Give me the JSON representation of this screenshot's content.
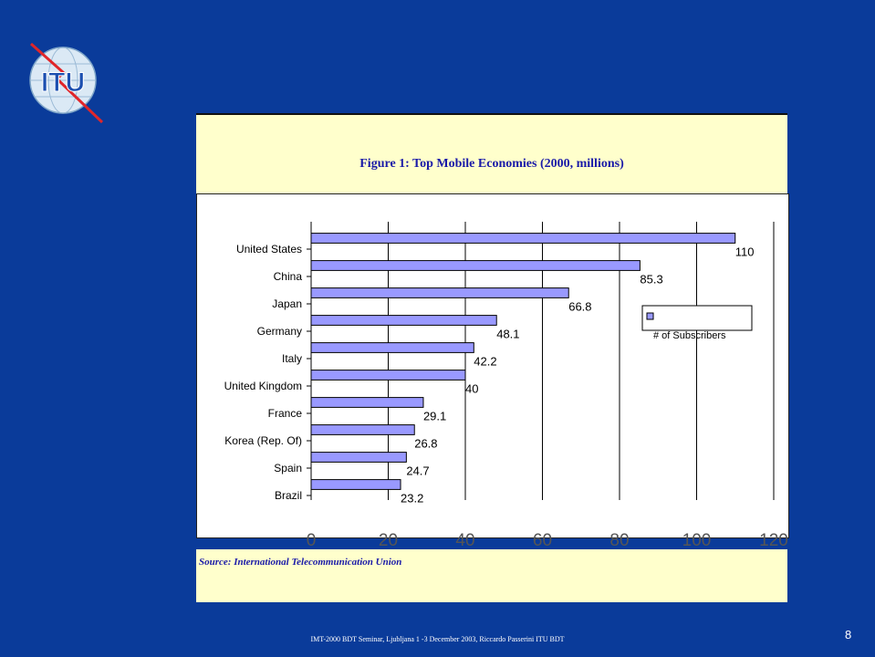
{
  "logo": {
    "text": "ITU"
  },
  "chart_data": {
    "type": "bar",
    "orientation": "horizontal",
    "title": "Figure  1:  Top Mobile Economies (2000, millions)",
    "categories": [
      "United States",
      "China",
      "Japan",
      "Germany",
      "Italy",
      "United Kingdom",
      "France",
      "Korea (Rep. Of)",
      "Spain",
      "Brazil"
    ],
    "series": [
      {
        "name": "# of Subscribers",
        "values": [
          110,
          85.3,
          66.8,
          48.1,
          42.2,
          40,
          29.1,
          26.8,
          24.7,
          23.2
        ]
      }
    ],
    "data_labels": [
      "110",
      "85.3",
      "66.8",
      "48.1",
      "42.2",
      "40",
      "29.1",
      "26.8",
      "24.7",
      "23.2"
    ],
    "x_ticks": [
      "0",
      "20",
      "40",
      "60",
      "80",
      "100",
      "120"
    ],
    "xlim": [
      0,
      120
    ],
    "grid": true,
    "bar_color": "#9999ff",
    "legend_position": "right"
  },
  "source": "Source: International Telecommunication Union",
  "footer": "IMT-2000 BDT Seminar, Ljubljana 1 -3 December 2003, Riccardo Passerini ITU BDT",
  "slide_number": "8",
  "colors": {
    "background": "#0a3b9a",
    "panel": "#ffffcc",
    "title_text": "#1a1aa8"
  }
}
